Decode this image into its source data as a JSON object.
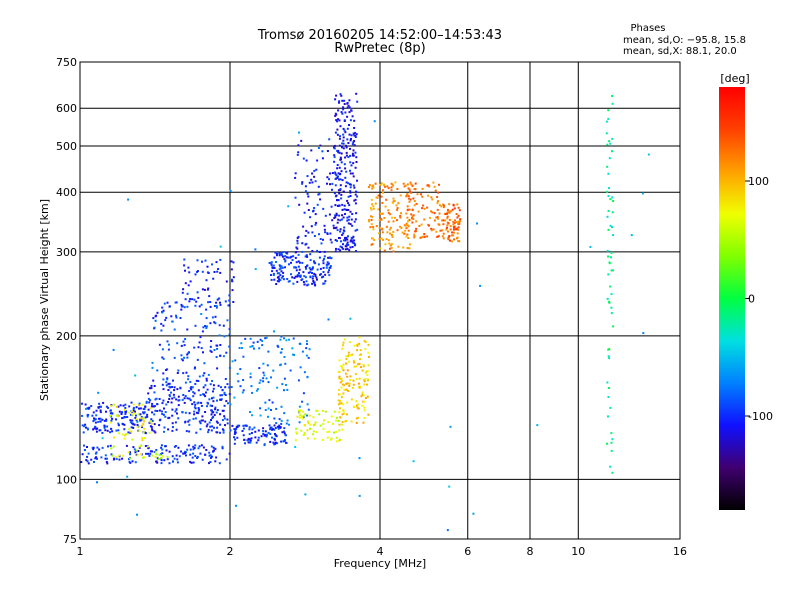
{
  "chart_data": {
    "type": "scatter",
    "title": "Tromsø 20160205 14:52:00–14:53:43",
    "subtitle": "RwPretec (8p)",
    "xlabel": "Frequency [MHz]",
    "ylabel": "Stationary phase Virtual Height [km]",
    "x_scale": "log",
    "y_scale": "log",
    "xlim": [
      1,
      16
    ],
    "ylim": [
      75,
      750
    ],
    "x_ticks": [
      {
        "value": 1,
        "label": "1"
      },
      {
        "value": 2,
        "label": "2"
      },
      {
        "value": 4,
        "label": "4"
      },
      {
        "value": 6,
        "label": "6"
      },
      {
        "value": 8,
        "label": "8"
      },
      {
        "value": 10,
        "label": "10"
      },
      {
        "value": 16,
        "label": "16"
      }
    ],
    "x_grid": [
      1,
      2,
      4,
      6,
      8,
      10,
      16
    ],
    "y_ticks": [
      {
        "value": 75,
        "label": "75"
      },
      {
        "value": 100,
        "label": "100"
      },
      {
        "value": 200,
        "label": "200"
      },
      {
        "value": 300,
        "label": "300"
      },
      {
        "value": 400,
        "label": "400"
      },
      {
        "value": 500,
        "label": "500"
      },
      {
        "value": 600,
        "label": "600"
      },
      {
        "value": 750,
        "label": "750"
      }
    ],
    "y_grid": [
      100,
      200,
      300,
      400,
      500,
      600
    ],
    "grid": true,
    "legend": {
      "title": "Phases",
      "lines": [
        "mean, sd,O: −95.8, 15.8",
        "mean, sd,X:  88.1, 20.0"
      ]
    },
    "colorbar": {
      "label": "[deg]",
      "range": [
        -180,
        180
      ],
      "ticks": [
        {
          "value": 100,
          "label": "100"
        },
        {
          "value": 0,
          "label": "0"
        },
        {
          "value": -100,
          "label": "-100"
        }
      ]
    },
    "trace_groups": [
      {
        "x_range": [
          1.0,
          1.35
        ],
        "y_range": [
          125,
          145
        ],
        "phase": -100,
        "count": 160
      },
      {
        "x_range": [
          1.35,
          2.0
        ],
        "y_range": [
          125,
          160
        ],
        "phase": -100,
        "count": 240
      },
      {
        "x_range": [
          1.4,
          2.0
        ],
        "y_range": [
          160,
          240
        ],
        "phase": -95,
        "count": 140
      },
      {
        "x_range": [
          1.6,
          2.05
        ],
        "y_range": [
          230,
          290
        ],
        "phase": -100,
        "count": 60
      },
      {
        "x_range": [
          1.0,
          2.0
        ],
        "y_range": [
          108,
          118
        ],
        "phase": -100,
        "count": 150
      },
      {
        "x_range": [
          2.0,
          2.6
        ],
        "y_range": [
          118,
          130
        ],
        "phase": -100,
        "count": 100
      },
      {
        "x_range": [
          2.0,
          2.9
        ],
        "y_range": [
          130,
          200
        ],
        "phase": -75,
        "count": 120
      },
      {
        "x_range": [
          1.15,
          1.4
        ],
        "y_range": [
          120,
          145
        ],
        "phase": 75,
        "count": 45
      },
      {
        "x_range": [
          1.15,
          1.5
        ],
        "y_range": [
          110,
          118
        ],
        "phase": 60,
        "count": 25
      },
      {
        "x_range": [
          2.4,
          3.2
        ],
        "y_range": [
          255,
          300
        ],
        "phase": -100,
        "count": 180
      },
      {
        "x_range": [
          2.7,
          3.5
        ],
        "y_range": [
          300,
          520
        ],
        "phase": -105,
        "count": 140
      },
      {
        "x_range": [
          3.25,
          3.6
        ],
        "y_range": [
          300,
          650
        ],
        "phase": -110,
        "count": 220
      },
      {
        "x_range": [
          2.7,
          3.4
        ],
        "y_range": [
          120,
          140
        ],
        "phase": 65,
        "count": 70
      },
      {
        "x_range": [
          3.3,
          3.8
        ],
        "y_range": [
          130,
          200
        ],
        "phase": 90,
        "count": 140
      },
      {
        "x_range": [
          3.8,
          4.6
        ],
        "y_range": [
          300,
          420
        ],
        "phase": 115,
        "count": 140
      },
      {
        "x_range": [
          4.5,
          5.3
        ],
        "y_range": [
          320,
          420
        ],
        "phase": 125,
        "count": 100
      },
      {
        "x_range": [
          5.3,
          5.8
        ],
        "y_range": [
          315,
          380
        ],
        "phase": 130,
        "count": 80
      },
      {
        "x_range": [
          11.4,
          11.75
        ],
        "y_range": [
          100,
          650
        ],
        "phase": -20,
        "count": 60
      },
      {
        "x_range": [
          1.0,
          16.0
        ],
        "y_range": [
          75,
          700
        ],
        "phase": -60,
        "count": 45
      }
    ]
  }
}
